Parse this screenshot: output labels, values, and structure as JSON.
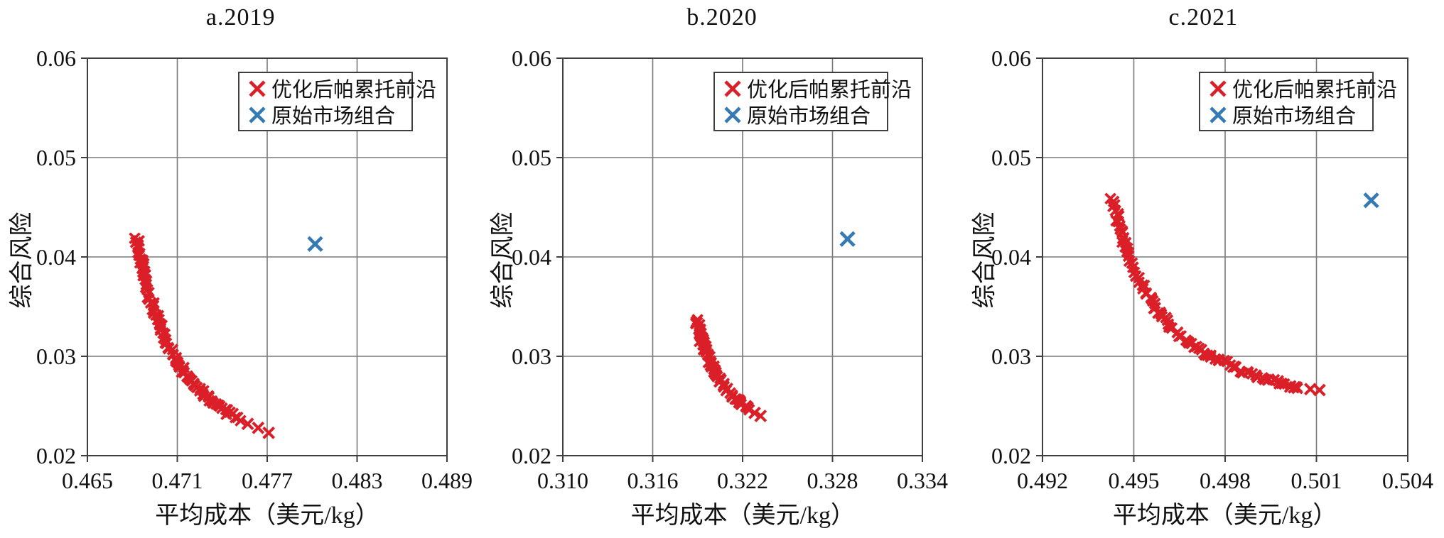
{
  "colors": {
    "pareto_red": "#da1f28",
    "market_blue": "#3579b5",
    "grid": "#7a7a7a",
    "axis": "#3f3f3f",
    "text": "#111111",
    "background": "#ffffff"
  },
  "chart_data": [
    {
      "type": "scatter",
      "title": "a.2019",
      "xlabel": "平均成本（美元/kg）",
      "ylabel": "综合风险",
      "xlim": [
        0.465,
        0.489
      ],
      "ylim": [
        0.02,
        0.06
      ],
      "x_ticks": [
        0.465,
        0.471,
        0.477,
        0.483,
        0.489
      ],
      "x_tick_labels": [
        "0.465",
        "0.471",
        "0.477",
        "0.483",
        "0.489"
      ],
      "y_ticks": [
        0.02,
        0.03,
        0.04,
        0.05,
        0.06
      ],
      "y_tick_labels": [
        "0.02",
        "0.03",
        "0.04",
        "0.05",
        "0.06"
      ],
      "grid": true,
      "legend_position": "upper right",
      "series": [
        {
          "name": "优化后帕累托前沿",
          "marker": "x",
          "color": "#da1f28",
          "points": [
            [
              0.4683,
              0.0417
            ],
            [
              0.4684,
              0.0409
            ],
            [
              0.4685,
              0.0401
            ],
            [
              0.4686,
              0.0394
            ],
            [
              0.4687,
              0.0387
            ],
            [
              0.4688,
              0.0381
            ],
            [
              0.469,
              0.0369
            ],
            [
              0.4692,
              0.0358
            ],
            [
              0.4694,
              0.0348
            ],
            [
              0.4696,
              0.034
            ],
            [
              0.4698,
              0.0332
            ],
            [
              0.47,
              0.0324
            ],
            [
              0.4703,
              0.0314
            ],
            [
              0.4706,
              0.0305
            ],
            [
              0.4709,
              0.0298
            ],
            [
              0.4712,
              0.029
            ],
            [
              0.4715,
              0.0284
            ],
            [
              0.4718,
              0.0278
            ],
            [
              0.4722,
              0.0271
            ],
            [
              0.4726,
              0.0265
            ],
            [
              0.473,
              0.0259
            ],
            [
              0.4735,
              0.0253
            ],
            [
              0.474,
              0.0247
            ],
            [
              0.4745,
              0.0242
            ],
            [
              0.4751,
              0.0237
            ]
          ],
          "tail_points": [
            [
              0.4757,
              0.0232
            ],
            [
              0.4764,
              0.0228
            ],
            [
              0.4771,
              0.0223
            ]
          ]
        },
        {
          "name": "原始市场组合",
          "marker": "x",
          "color": "#3579b5",
          "points": [
            [
              0.4802,
              0.0413
            ]
          ],
          "tail_points": []
        }
      ]
    },
    {
      "type": "scatter",
      "title": "b.2020",
      "xlabel": "平均成本（美元/kg）",
      "ylabel": "综合风险",
      "xlim": [
        0.31,
        0.334
      ],
      "ylim": [
        0.02,
        0.06
      ],
      "x_ticks": [
        0.31,
        0.316,
        0.322,
        0.328,
        0.334
      ],
      "x_tick_labels": [
        "0.310",
        "0.316",
        "0.322",
        "0.328",
        "0.334"
      ],
      "y_ticks": [
        0.02,
        0.03,
        0.04,
        0.05,
        0.06
      ],
      "y_tick_labels": [
        "0.02",
        "0.03",
        "0.04",
        "0.05",
        "0.06"
      ],
      "grid": true,
      "legend_position": "upper right",
      "series": [
        {
          "name": "优化后帕累托前沿",
          "marker": "x",
          "color": "#da1f28",
          "points": [
            [
              0.3189,
              0.0336
            ],
            [
              0.319,
              0.033
            ],
            [
              0.3191,
              0.0324
            ],
            [
              0.3192,
              0.0319
            ],
            [
              0.3193,
              0.0314
            ],
            [
              0.3194,
              0.031
            ],
            [
              0.3195,
              0.0306
            ],
            [
              0.3197,
              0.0298
            ],
            [
              0.3199,
              0.0292
            ],
            [
              0.3201,
              0.0286
            ],
            [
              0.3203,
              0.0281
            ],
            [
              0.3205,
              0.0276
            ],
            [
              0.3208,
              0.027
            ],
            [
              0.3211,
              0.0264
            ],
            [
              0.3214,
              0.0259
            ],
            [
              0.3217,
              0.0255
            ],
            [
              0.322,
              0.0251
            ],
            [
              0.3225,
              0.0246
            ]
          ],
          "tail_points": [
            [
              0.3228,
              0.0243
            ],
            [
              0.3232,
              0.024
            ]
          ]
        },
        {
          "name": "原始市场组合",
          "marker": "x",
          "color": "#3579b5",
          "points": [
            [
              0.329,
              0.0418
            ]
          ],
          "tail_points": []
        }
      ]
    },
    {
      "type": "scatter",
      "title": "c.2021",
      "xlabel": "平均成本（美元/kg）",
      "ylabel": "综合风险",
      "xlim": [
        0.492,
        0.504
      ],
      "ylim": [
        0.02,
        0.06
      ],
      "x_ticks": [
        0.492,
        0.495,
        0.498,
        0.501,
        0.504
      ],
      "x_tick_labels": [
        "0.492",
        "0.495",
        "0.498",
        "0.501",
        "0.504"
      ],
      "y_ticks": [
        0.02,
        0.03,
        0.04,
        0.05,
        0.06
      ],
      "y_tick_labels": [
        "0.02",
        "0.03",
        "0.04",
        "0.05",
        "0.06"
      ],
      "grid": true,
      "legend_position": "upper right",
      "series": [
        {
          "name": "优化后帕累托前沿",
          "marker": "x",
          "color": "#da1f28",
          "points": [
            [
              0.4943,
              0.0459
            ],
            [
              0.4944,
              0.0446
            ],
            [
              0.4945,
              0.0434
            ],
            [
              0.4946,
              0.0423
            ],
            [
              0.4947,
              0.0413
            ],
            [
              0.4948,
              0.0404
            ],
            [
              0.495,
              0.0388
            ],
            [
              0.4952,
              0.0375
            ],
            [
              0.4954,
              0.0364
            ],
            [
              0.4956,
              0.0354
            ],
            [
              0.4958,
              0.0345
            ],
            [
              0.496,
              0.0338
            ],
            [
              0.4963,
              0.0328
            ],
            [
              0.4966,
              0.0319
            ],
            [
              0.4969,
              0.0312
            ],
            [
              0.4972,
              0.0306
            ],
            [
              0.4975,
              0.03
            ],
            [
              0.4978,
              0.0296
            ],
            [
              0.4982,
              0.029
            ],
            [
              0.4986,
              0.0285
            ],
            [
              0.499,
              0.0281
            ],
            [
              0.4994,
              0.0277
            ],
            [
              0.4998,
              0.0273
            ],
            [
              0.5002,
              0.027
            ],
            [
              0.5004,
              0.0269
            ]
          ],
          "tail_points": [
            [
              0.5008,
              0.0267
            ],
            [
              0.5011,
              0.0266
            ]
          ]
        },
        {
          "name": "原始市场组合",
          "marker": "x",
          "color": "#3579b5",
          "points": [
            [
              0.5028,
              0.0457
            ]
          ],
          "tail_points": []
        }
      ]
    }
  ]
}
